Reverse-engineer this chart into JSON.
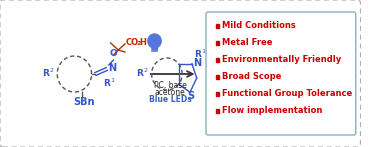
{
  "background_color": "#ffffff",
  "outer_border_color": "#b0b0b0",
  "box_border_color": "#8ab0c0",
  "bullet_color": "#cc0000",
  "bullet_items": [
    "Mild Conditions",
    "Metal Free",
    "Environmentally Friendly",
    "Broad Scope",
    "Functional Group Tolerance",
    "Flow implementation"
  ],
  "bullet_fontsize": 6.0,
  "bullet_text_color": "#cc0000",
  "reaction_text_line1": "PC, base",
  "reaction_text_line2": "acetone",
  "reaction_text_line3": "Blue LEDs",
  "reaction_text_color": "#222222",
  "reaction_blue_text_color": "#3366cc",
  "co2h_color": "#cc2200",
  "tbu_color": "#aa3300",
  "structure_color": "#3355cc",
  "r_label_color": "#3355cc",
  "sbn_color": "#3355cc",
  "arrow_color": "#333333",
  "bulb_color": "#5577dd"
}
